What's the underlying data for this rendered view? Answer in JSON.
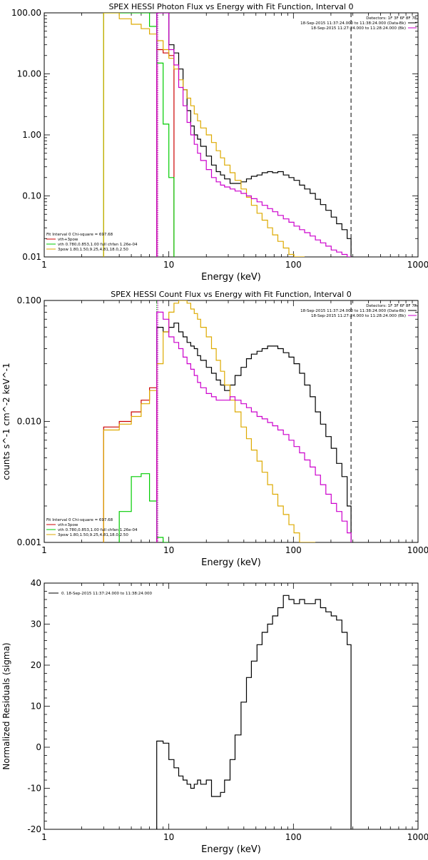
{
  "chart_data": [
    {
      "type": "line",
      "title": "SPEX HESSI Photon Flux vs Energy with Fit Function, Interval 0",
      "xlabel": "Energy (keV)",
      "ylabel": "",
      "xscale": "log",
      "yscale": "log",
      "xlim": [
        1,
        1000
      ],
      "ylim": [
        0.01,
        100
      ],
      "x_ticks": [
        "1",
        "10",
        "100",
        "1000"
      ],
      "y_ticks": [
        "0.01",
        "0.10",
        "1.00",
        "10.00",
        "100.00"
      ],
      "legend_position": "bottom-left",
      "legend_header": "Fit Interval 0   Chi-square = 697.68",
      "legend": [
        {
          "label": "vth+3pow",
          "color": "#cc0000"
        },
        {
          "label": "vth 0.780,0.853,1.00  full chfan 1.26e-04",
          "color": "#00cc00"
        },
        {
          "label": "3pow 1.80,1.50,9.25,4.81,18.0,2.50",
          "color": "#ddaa00"
        }
      ],
      "detectors": "Detectors: 1F 3F 6F 8F 7F",
      "time_labels": [
        {
          "text": "18-Sep-2015 11:37:24.000 to 11:38:24.000 (Data-Bk)",
          "color": "#000000"
        },
        {
          "text": "18-Sep-2015 11:27:24.000 to 11:28:24.000 (Bk)",
          "color": "#cc00cc"
        }
      ],
      "vlines": [
        {
          "x": 8,
          "color": "#00aa00",
          "style": "dotted"
        },
        {
          "x": 8,
          "color": "#cc00cc",
          "style": "dotted"
        },
        {
          "x": 290,
          "color": "#000000",
          "style": "dashed"
        }
      ],
      "series": [
        {
          "name": "Data-Bk",
          "color": "#000000",
          "edges": [
            8,
            9,
            10,
            11,
            12,
            13,
            14,
            15,
            16,
            17,
            18,
            20,
            22,
            24,
            26,
            28,
            31,
            34,
            38,
            42,
            46,
            51,
            56,
            62,
            68,
            75,
            83,
            92,
            101,
            112,
            123,
            136,
            150,
            165,
            182,
            201,
            222,
            245,
            270,
            290
          ],
          "values": [
            100,
            100,
            30,
            22,
            12,
            5.5,
            2.5,
            1.4,
            1.0,
            0.85,
            0.65,
            0.45,
            0.32,
            0.25,
            0.22,
            0.19,
            0.16,
            0.16,
            0.17,
            0.19,
            0.21,
            0.22,
            0.24,
            0.25,
            0.24,
            0.25,
            0.22,
            0.2,
            0.18,
            0.15,
            0.13,
            0.11,
            0.088,
            0.072,
            0.058,
            0.045,
            0.035,
            0.028,
            0.02
          ]
        },
        {
          "name": "vth+3pow",
          "color": "#cc0000",
          "edges": [
            8,
            9,
            10,
            11
          ],
          "values": [
            25,
            22,
            20
          ]
        },
        {
          "name": "vth",
          "color": "#00cc00",
          "edges": [
            3,
            4,
            5,
            6,
            7,
            8,
            9,
            10,
            11
          ],
          "values": [
            100,
            100,
            100,
            100,
            60,
            15,
            1.5,
            0.2
          ]
        },
        {
          "name": "3pow",
          "color": "#ddaa00",
          "edges": [
            3,
            4,
            5,
            6,
            7,
            8,
            9,
            10,
            11,
            12,
            13,
            14,
            15,
            16,
            17,
            18,
            20,
            22,
            24,
            26,
            28,
            31,
            34,
            38,
            42,
            46,
            51,
            56,
            62,
            68,
            75,
            83,
            92,
            101,
            112,
            123
          ],
          "values": [
            100,
            80,
            65,
            55,
            45,
            35,
            25,
            18,
            12,
            8,
            5.5,
            4,
            3,
            2.2,
            1.7,
            1.3,
            1.0,
            0.75,
            0.55,
            0.42,
            0.32,
            0.24,
            0.18,
            0.13,
            0.095,
            0.07,
            0.052,
            0.04,
            0.03,
            0.023,
            0.018,
            0.014,
            0.011,
            0.0095,
            0.008
          ]
        },
        {
          "name": "Bk",
          "color": "#cc00cc",
          "edges": [
            8,
            9,
            10,
            11,
            12,
            13,
            14,
            15,
            16,
            17,
            18,
            20,
            22,
            24,
            26,
            28,
            31,
            34,
            38,
            42,
            46,
            51,
            56,
            62,
            68,
            75,
            83,
            92,
            101,
            112,
            123,
            136,
            150,
            165,
            182,
            201,
            222,
            245,
            270,
            290
          ],
          "values": [
            100,
            100,
            25,
            14,
            6,
            3,
            1.6,
            1.0,
            0.7,
            0.5,
            0.38,
            0.27,
            0.2,
            0.17,
            0.15,
            0.14,
            0.13,
            0.12,
            0.11,
            0.1,
            0.09,
            0.08,
            0.07,
            0.062,
            0.055,
            0.048,
            0.042,
            0.037,
            0.032,
            0.028,
            0.025,
            0.022,
            0.019,
            0.017,
            0.015,
            0.013,
            0.012,
            0.011,
            0.01
          ]
        }
      ]
    },
    {
      "type": "line",
      "title": "SPEX HESSI Count Flux vs Energy with Fit Function, Interval 0",
      "xlabel": "Energy (keV)",
      "ylabel": "counts s^-1 cm^-2 keV^-1",
      "xscale": "log",
      "yscale": "log",
      "xlim": [
        1,
        1000
      ],
      "ylim": [
        0.001,
        0.1
      ],
      "x_ticks": [
        "1",
        "10",
        "100",
        "1000"
      ],
      "y_ticks": [
        "0.001",
        "0.010",
        "0.100"
      ],
      "legend_position": "bottom-left",
      "legend_header": "Fit Interval 0   Chi-square = 697.68",
      "legend": [
        {
          "label": "vth+3pow",
          "color": "#cc0000"
        },
        {
          "label": "vth 0.780,0.853,1.00  full chfan 1.26e-04",
          "color": "#00cc00"
        },
        {
          "label": "3pow 1.80,1.50,9.25,4.81,18.0,2.50",
          "color": "#ddaa00"
        }
      ],
      "detectors": "Detectors: 1F 3F 6F 8F 7F",
      "time_labels": [
        {
          "text": "18-Sep-2015 11:37:24.000 to 11:38:24.000 (Data-Bk)",
          "color": "#000000"
        },
        {
          "text": "18-Sep-2015 11:27:24.000 to 11:28:24.000 (Bk)",
          "color": "#cc00cc"
        }
      ],
      "vlines": [
        {
          "x": 8,
          "color": "#00aa00",
          "style": "dotted"
        },
        {
          "x": 8,
          "color": "#cc00cc",
          "style": "dotted"
        },
        {
          "x": 290,
          "color": "#000000",
          "style": "dashed"
        }
      ],
      "series": [
        {
          "name": "Data-Bk",
          "color": "#000000",
          "edges": [
            8,
            9,
            10,
            11,
            12,
            13,
            14,
            15,
            16,
            17,
            18,
            20,
            22,
            24,
            26,
            28,
            31,
            34,
            38,
            42,
            46,
            51,
            56,
            62,
            68,
            75,
            83,
            92,
            101,
            112,
            123,
            136,
            150,
            165,
            182,
            201,
            222,
            245,
            270,
            290
          ],
          "values": [
            0.06,
            0.055,
            0.06,
            0.065,
            0.055,
            0.05,
            0.045,
            0.042,
            0.04,
            0.035,
            0.032,
            0.028,
            0.025,
            0.022,
            0.02,
            0.018,
            0.02,
            0.024,
            0.028,
            0.033,
            0.036,
            0.038,
            0.04,
            0.042,
            0.042,
            0.04,
            0.037,
            0.034,
            0.03,
            0.025,
            0.02,
            0.016,
            0.012,
            0.0095,
            0.0075,
            0.006,
            0.0045,
            0.0035,
            0.002
          ]
        },
        {
          "name": "vth+3pow",
          "color": "#cc0000",
          "edges": [
            3,
            4,
            5,
            6,
            7,
            8
          ],
          "values": [
            0.009,
            0.01,
            0.012,
            0.015,
            0.019
          ]
        },
        {
          "name": "vth",
          "color": "#00cc00",
          "edges": [
            4,
            5,
            6,
            7,
            8,
            9,
            10
          ],
          "values": [
            0.0018,
            0.0035,
            0.0037,
            0.0022,
            0.0011,
            0.0006
          ]
        },
        {
          "name": "3pow",
          "color": "#ddaa00",
          "edges": [
            3,
            4,
            5,
            6,
            7,
            8,
            9,
            10,
            11,
            12,
            13,
            14,
            15,
            16,
            17,
            18,
            20,
            22,
            24,
            26,
            28,
            31,
            34,
            38,
            42,
            46,
            51,
            56,
            62,
            68,
            75,
            83,
            92,
            101,
            112,
            123,
            136,
            150
          ],
          "values": [
            0.0085,
            0.0095,
            0.011,
            0.014,
            0.018,
            0.03,
            0.055,
            0.08,
            0.095,
            0.1,
            0.1,
            0.095,
            0.085,
            0.078,
            0.07,
            0.06,
            0.05,
            0.04,
            0.032,
            0.026,
            0.02,
            0.015,
            0.012,
            0.009,
            0.0072,
            0.0058,
            0.0047,
            0.0038,
            0.003,
            0.0025,
            0.002,
            0.0017,
            0.0014,
            0.0012,
            0.001,
            0.001,
            0.001
          ]
        },
        {
          "name": "Bk",
          "color": "#cc00cc",
          "edges": [
            8,
            9,
            10,
            11,
            12,
            13,
            14,
            15,
            16,
            17,
            18,
            20,
            22,
            24,
            26,
            28,
            31,
            34,
            38,
            42,
            46,
            51,
            56,
            62,
            68,
            75,
            83,
            92,
            101,
            112,
            123,
            136,
            150,
            165,
            182,
            201,
            222,
            245,
            270,
            290
          ],
          "values": [
            0.08,
            0.07,
            0.05,
            0.045,
            0.04,
            0.034,
            0.03,
            0.027,
            0.024,
            0.021,
            0.019,
            0.017,
            0.016,
            0.015,
            0.015,
            0.015,
            0.016,
            0.015,
            0.014,
            0.013,
            0.012,
            0.011,
            0.0105,
            0.0098,
            0.0092,
            0.0085,
            0.0078,
            0.007,
            0.0062,
            0.0055,
            0.0048,
            0.0042,
            0.0036,
            0.003,
            0.0025,
            0.0021,
            0.0018,
            0.0015,
            0.0012
          ]
        }
      ]
    },
    {
      "type": "line",
      "title": "",
      "xlabel": "Energy (keV)",
      "ylabel": "Normalized Residuals (sigma)",
      "xscale": "log",
      "yscale": "linear",
      "xlim": [
        1,
        1000
      ],
      "ylim": [
        -20,
        40
      ],
      "x_ticks": [
        "1",
        "10",
        "100",
        "1000"
      ],
      "y_ticks": [
        "-20",
        "-10",
        "0",
        "10",
        "20",
        "30",
        "40"
      ],
      "legend_position": "top-left",
      "legend": [
        {
          "label": "0. 18-Sep-2015 11:37:24.000 to 11:38:24.000",
          "color": "#000000"
        }
      ],
      "series": [
        {
          "name": "residuals",
          "color": "#000000",
          "edges": [
            8,
            9,
            10,
            11,
            12,
            13,
            14,
            15,
            16,
            17,
            18,
            20,
            22,
            24,
            26,
            28,
            31,
            34,
            38,
            42,
            46,
            51,
            56,
            62,
            68,
            75,
            83,
            92,
            101,
            112,
            123,
            136,
            150,
            165,
            182,
            201,
            222,
            245,
            270,
            290
          ],
          "values": [
            1.5,
            1,
            -3,
            -5,
            -7,
            -8,
            -9,
            -10,
            -9,
            -8,
            -9,
            -8,
            -12,
            -12,
            -11,
            -8,
            -3,
            3,
            11,
            17,
            21,
            25,
            28,
            30,
            32,
            34,
            37,
            36,
            35,
            36,
            35,
            35,
            36,
            34,
            33,
            32,
            31,
            28,
            25
          ]
        }
      ]
    }
  ]
}
